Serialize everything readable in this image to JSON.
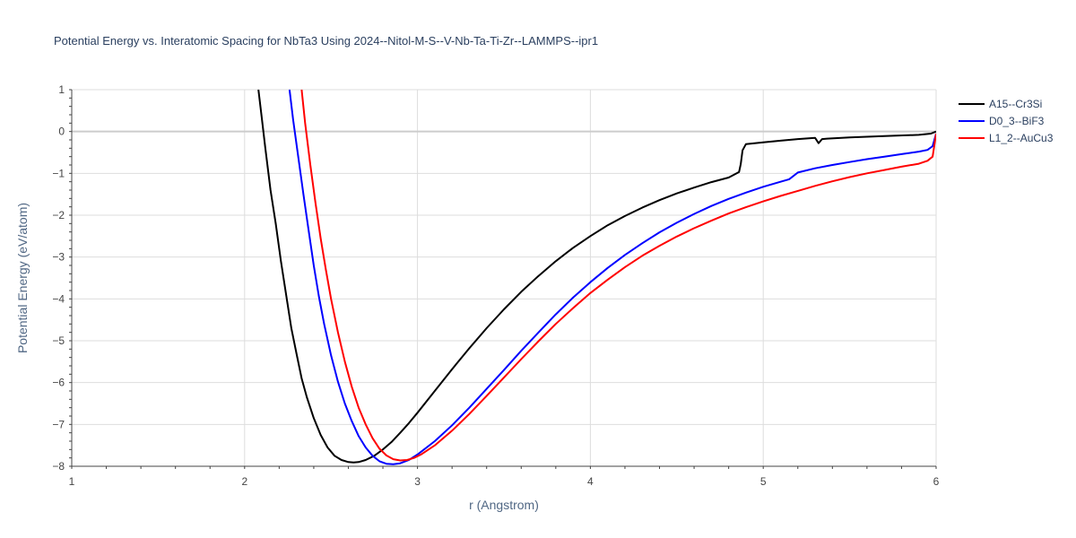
{
  "chart_data": {
    "type": "line",
    "title": "Potential Energy vs. Interatomic Spacing for NbTa3 Using 2024--Nitol-M-S--V-Nb-Ta-Ti-Zr--LAMMPS--ipr1",
    "xlabel": "r (Angstrom)",
    "ylabel": "Potential Energy (eV/atom)",
    "xlim": [
      1,
      6
    ],
    "ylim": [
      -8,
      1
    ],
    "xticks": [
      1,
      2,
      3,
      4,
      5,
      6
    ],
    "yticks": [
      1,
      0,
      -1,
      -2,
      -3,
      -4,
      -5,
      -6,
      -7,
      -8
    ],
    "ytick_labels": [
      "1",
      "0",
      "−1",
      "−2",
      "−3",
      "−4",
      "−5",
      "−6",
      "−7",
      "−8"
    ],
    "grid": true,
    "legend": "top-right outside",
    "series": [
      {
        "name": "A15--Cr3Si",
        "color": "#000000",
        "x": [
          2.08,
          2.1,
          2.12,
          2.15,
          2.18,
          2.21,
          2.24,
          2.27,
          2.3,
          2.33,
          2.36,
          2.4,
          2.44,
          2.48,
          2.52,
          2.56,
          2.6,
          2.63,
          2.66,
          2.7,
          2.75,
          2.8,
          2.85,
          2.9,
          2.95,
          3.0,
          3.1,
          3.2,
          3.3,
          3.4,
          3.5,
          3.6,
          3.7,
          3.8,
          3.9,
          4.0,
          4.1,
          4.2,
          4.3,
          4.4,
          4.5,
          4.6,
          4.7,
          4.8,
          4.86,
          4.87,
          4.88,
          4.9,
          5.0,
          5.1,
          5.2,
          5.3,
          5.32,
          5.34,
          5.37,
          5.5,
          5.7,
          5.9,
          5.97,
          6.0
        ],
        "y": [
          1.0,
          0.3,
          -0.4,
          -1.4,
          -2.2,
          -3.1,
          -3.9,
          -4.7,
          -5.3,
          -5.9,
          -6.35,
          -6.85,
          -7.25,
          -7.55,
          -7.75,
          -7.85,
          -7.9,
          -7.91,
          -7.9,
          -7.85,
          -7.75,
          -7.6,
          -7.42,
          -7.2,
          -6.97,
          -6.72,
          -6.2,
          -5.68,
          -5.18,
          -4.7,
          -4.25,
          -3.83,
          -3.45,
          -3.1,
          -2.78,
          -2.5,
          -2.24,
          -2.02,
          -1.82,
          -1.64,
          -1.48,
          -1.34,
          -1.21,
          -1.1,
          -0.97,
          -0.78,
          -0.45,
          -0.3,
          -0.26,
          -0.22,
          -0.18,
          -0.15,
          -0.28,
          -0.18,
          -0.17,
          -0.14,
          -0.11,
          -0.08,
          -0.05,
          0.0
        ]
      },
      {
        "name": "D0_3--BiF3",
        "color": "#0000ff",
        "x": [
          2.26,
          2.28,
          2.31,
          2.34,
          2.37,
          2.4,
          2.43,
          2.46,
          2.5,
          2.54,
          2.58,
          2.62,
          2.66,
          2.7,
          2.74,
          2.78,
          2.82,
          2.86,
          2.9,
          2.95,
          3.0,
          3.1,
          3.2,
          3.3,
          3.4,
          3.5,
          3.6,
          3.7,
          3.8,
          3.9,
          4.0,
          4.1,
          4.2,
          4.3,
          4.4,
          4.5,
          4.6,
          4.7,
          4.8,
          4.9,
          5.0,
          5.1,
          5.15,
          5.2,
          5.3,
          5.4,
          5.5,
          5.6,
          5.7,
          5.8,
          5.9,
          5.95,
          5.98,
          6.0
        ],
        "y": [
          1.0,
          0.3,
          -0.6,
          -1.5,
          -2.35,
          -3.2,
          -3.95,
          -4.6,
          -5.35,
          -5.98,
          -6.5,
          -6.92,
          -7.28,
          -7.55,
          -7.75,
          -7.88,
          -7.94,
          -7.95,
          -7.93,
          -7.85,
          -7.72,
          -7.4,
          -7.02,
          -6.6,
          -6.15,
          -5.7,
          -5.24,
          -4.8,
          -4.37,
          -3.97,
          -3.6,
          -3.26,
          -2.95,
          -2.67,
          -2.41,
          -2.18,
          -1.97,
          -1.78,
          -1.61,
          -1.46,
          -1.32,
          -1.2,
          -1.14,
          -0.98,
          -0.88,
          -0.8,
          -0.73,
          -0.66,
          -0.6,
          -0.54,
          -0.48,
          -0.44,
          -0.35,
          -0.05
        ]
      },
      {
        "name": "L1_2--AuCu3",
        "color": "#ff0000",
        "x": [
          2.33,
          2.35,
          2.38,
          2.41,
          2.44,
          2.47,
          2.5,
          2.54,
          2.58,
          2.62,
          2.66,
          2.7,
          2.74,
          2.78,
          2.82,
          2.86,
          2.9,
          2.94,
          2.98,
          3.02,
          3.1,
          3.2,
          3.3,
          3.4,
          3.5,
          3.6,
          3.7,
          3.8,
          3.9,
          4.0,
          4.1,
          4.2,
          4.3,
          4.4,
          4.5,
          4.6,
          4.7,
          4.8,
          4.9,
          5.0,
          5.1,
          5.2,
          5.3,
          5.4,
          5.5,
          5.6,
          5.7,
          5.8,
          5.9,
          5.95,
          5.98,
          6.0
        ],
        "y": [
          1.0,
          0.2,
          -0.8,
          -1.7,
          -2.55,
          -3.3,
          -4.0,
          -4.8,
          -5.5,
          -6.1,
          -6.6,
          -7.0,
          -7.33,
          -7.58,
          -7.74,
          -7.83,
          -7.86,
          -7.85,
          -7.8,
          -7.72,
          -7.5,
          -7.15,
          -6.75,
          -6.32,
          -5.88,
          -5.44,
          -5.01,
          -4.6,
          -4.22,
          -3.86,
          -3.54,
          -3.24,
          -2.97,
          -2.73,
          -2.51,
          -2.31,
          -2.13,
          -1.96,
          -1.81,
          -1.67,
          -1.54,
          -1.42,
          -1.3,
          -1.19,
          -1.09,
          -1.0,
          -0.92,
          -0.84,
          -0.77,
          -0.7,
          -0.6,
          -0.05
        ]
      }
    ]
  }
}
